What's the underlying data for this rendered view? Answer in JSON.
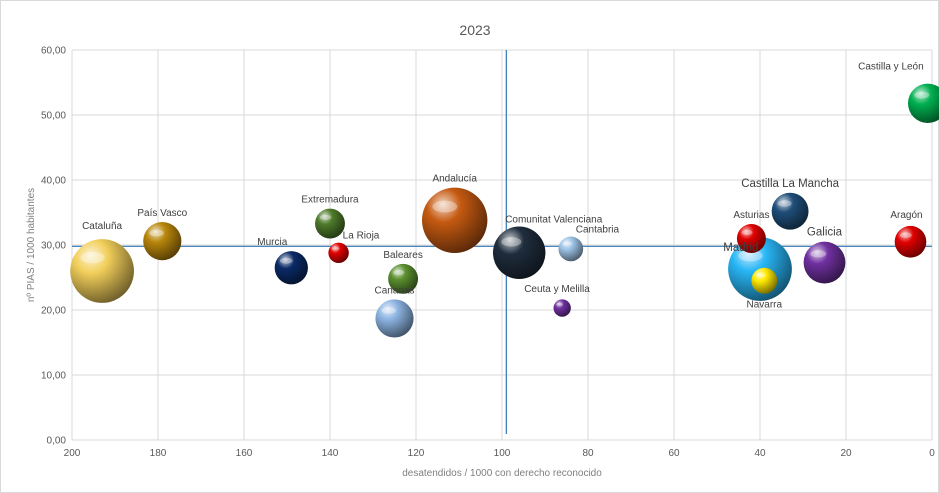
{
  "chart_data": {
    "type": "scatter",
    "title": "2023",
    "xlabel": "desatendidos / 1000 con derecho reconocido",
    "ylabel": "nº PIAS / 1000 habitantes",
    "x_reversed": true,
    "xlim": [
      200,
      0
    ],
    "ylim": [
      0,
      60
    ],
    "x_ticks": [
      "200",
      "180",
      "160",
      "140",
      "120",
      "100",
      "80",
      "60",
      "40",
      "20",
      "0"
    ],
    "x_tick_values": [
      200,
      180,
      160,
      140,
      120,
      100,
      80,
      60,
      40,
      20,
      0
    ],
    "y_ticks": [
      "0,00",
      "10,00",
      "20,00",
      "30,00",
      "40,00",
      "50,00",
      "60,00"
    ],
    "y_tick_values": [
      0,
      10,
      20,
      30,
      40,
      50,
      60
    ],
    "grid": true,
    "reference_lines": {
      "x": 99,
      "y": 29.8,
      "color": "#2e75b6"
    },
    "points": [
      {
        "label": "Cataluña",
        "x": 193,
        "y": 26.0,
        "size": 8.0,
        "color": "#f2cf5b",
        "label_pos": "above-left",
        "label_big": false
      },
      {
        "label": "País Vasco",
        "x": 179,
        "y": 30.6,
        "size": 2.2,
        "color": "#b8860b",
        "label_pos": "above",
        "label_big": false
      },
      {
        "label": "Murcia",
        "x": 149,
        "y": 26.5,
        "size": 1.5,
        "color": "#0a2a66",
        "label_pos": "above-left",
        "label_big": false
      },
      {
        "label": "Extremadura",
        "x": 140,
        "y": 33.3,
        "size": 1.1,
        "color": "#4e7a2a",
        "label_pos": "above",
        "label_big": false
      },
      {
        "label": "La Rioja",
        "x": 138,
        "y": 28.8,
        "size": 0.3,
        "color": "#e00000",
        "label_pos": "above-right",
        "label_big": false
      },
      {
        "label": "Baleares",
        "x": 123,
        "y": 24.8,
        "size": 1.1,
        "color": "#5b8f2f",
        "label_pos": "above",
        "label_big": false
      },
      {
        "label": "Canarias",
        "x": 125,
        "y": 18.7,
        "size": 2.2,
        "color": "#8db4e2",
        "label_pos": "above",
        "label_big": false
      },
      {
        "label": "Andalucía",
        "x": 111,
        "y": 33.8,
        "size": 8.5,
        "color": "#c55a11",
        "label_pos": "above",
        "label_big": false
      },
      {
        "label": "Comunitat Valenciana",
        "x": 96,
        "y": 28.8,
        "size": 5.0,
        "color": "#1f2d3d",
        "label_pos": "above-right",
        "label_big": false
      },
      {
        "label": "Cantabria",
        "x": 84,
        "y": 29.4,
        "size": 0.6,
        "color": "#9dc3e6",
        "label_pos": "above-right",
        "label_big": false
      },
      {
        "label": "Ceuta y Melilla",
        "x": 86,
        "y": 20.3,
        "size": 0.15,
        "color": "#7030a0",
        "label_pos": "above-right",
        "label_big": false
      },
      {
        "label": "Castilla y León",
        "x": 1,
        "y": 51.8,
        "size": 2.4,
        "color": "#00b050",
        "label_pos": "above-left",
        "label_big": false
      },
      {
        "label": "Castilla La Mancha",
        "x": 33,
        "y": 35.2,
        "size": 2.0,
        "color": "#1f4e79",
        "label_pos": "above",
        "label_big": true
      },
      {
        "label": "Asturias",
        "x": 42,
        "y": 31.0,
        "size": 1.0,
        "color": "#e00000",
        "label_pos": "above",
        "label_big": false
      },
      {
        "label": "Aragón",
        "x": 5,
        "y": 30.5,
        "size": 1.3,
        "color": "#e00000",
        "label_pos": "above",
        "label_big": false
      },
      {
        "label": "Madrid",
        "x": 40,
        "y": 26.3,
        "size": 8.0,
        "color": "#29b6f6",
        "label_pos": "above-left",
        "label_big": true
      },
      {
        "label": "Navarra",
        "x": 39,
        "y": 24.5,
        "size": 0.7,
        "color": "#ffea00",
        "label_pos": "below",
        "label_big": false
      },
      {
        "label": "Galicia",
        "x": 25,
        "y": 27.3,
        "size": 2.8,
        "color": "#7030a0",
        "label_pos": "above",
        "label_big": true
      }
    ]
  }
}
